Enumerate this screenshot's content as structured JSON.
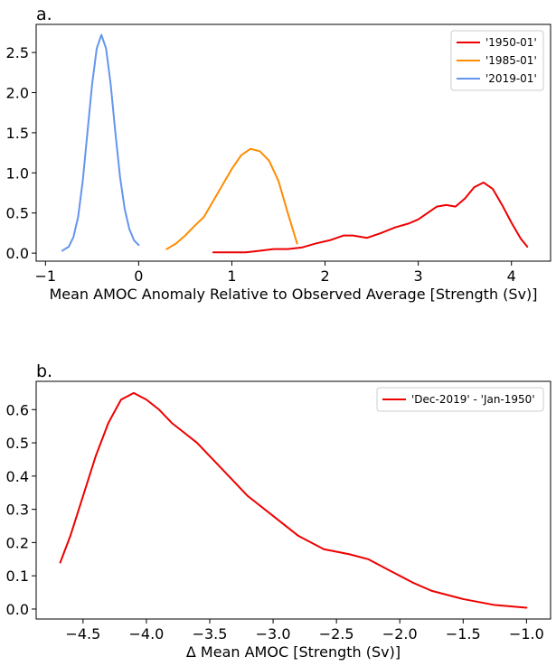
{
  "chart_data": [
    {
      "type": "line",
      "panel_label": "a.",
      "xlabel": "Mean AMOC Anomaly Relative to Observed Average [Strength (Sv)]",
      "ylabel": "",
      "xlim": [
        -1.1,
        4.42
      ],
      "ylim": [
        -0.1,
        2.85
      ],
      "xticks": [
        -1,
        0,
        1,
        2,
        3,
        4
      ],
      "xtick_labels": [
        "−1",
        "0",
        "1",
        "2",
        "3",
        "4"
      ],
      "yticks": [
        0.0,
        0.5,
        1.0,
        1.5,
        2.0,
        2.5
      ],
      "ytick_labels": [
        "0.0",
        "0.5",
        "1.0",
        "1.5",
        "2.0",
        "2.5"
      ],
      "grid": false,
      "legend_placement": "top-right",
      "series": [
        {
          "name": "'1950-01'",
          "color": "#ee0000",
          "x": [
            0.8,
            1.0,
            1.15,
            1.3,
            1.45,
            1.6,
            1.75,
            1.9,
            2.05,
            2.2,
            2.3,
            2.45,
            2.6,
            2.75,
            2.9,
            3.0,
            3.1,
            3.2,
            3.3,
            3.4,
            3.5,
            3.6,
            3.7,
            3.8,
            3.9,
            4.0,
            4.1,
            4.17
          ],
          "y": [
            0.01,
            0.01,
            0.01,
            0.03,
            0.05,
            0.05,
            0.07,
            0.12,
            0.16,
            0.22,
            0.22,
            0.19,
            0.25,
            0.32,
            0.37,
            0.42,
            0.5,
            0.58,
            0.6,
            0.58,
            0.68,
            0.82,
            0.88,
            0.8,
            0.6,
            0.38,
            0.18,
            0.08
          ]
        },
        {
          "name": "'1985-01'",
          "color": "#ff8c00",
          "x": [
            0.3,
            0.4,
            0.5,
            0.6,
            0.7,
            0.8,
            0.9,
            1.0,
            1.1,
            1.2,
            1.3,
            1.4,
            1.5,
            1.6,
            1.7
          ],
          "y": [
            0.05,
            0.12,
            0.22,
            0.34,
            0.45,
            0.65,
            0.85,
            1.05,
            1.22,
            1.3,
            1.27,
            1.15,
            0.9,
            0.5,
            0.12
          ]
        },
        {
          "name": "'2019-01'",
          "color": "#6495ed",
          "x": [
            -0.82,
            -0.75,
            -0.7,
            -0.65,
            -0.6,
            -0.55,
            -0.5,
            -0.45,
            -0.4,
            -0.35,
            -0.3,
            -0.25,
            -0.2,
            -0.15,
            -0.1,
            -0.05,
            0.0
          ],
          "y": [
            0.03,
            0.08,
            0.2,
            0.45,
            0.9,
            1.5,
            2.1,
            2.55,
            2.72,
            2.55,
            2.1,
            1.5,
            0.95,
            0.55,
            0.3,
            0.16,
            0.1
          ]
        }
      ]
    },
    {
      "type": "line",
      "panel_label": "b.",
      "xlabel": "Δ Mean AMOC [Strength (Sv)]",
      "ylabel": "",
      "xlim": [
        -4.87,
        -0.81
      ],
      "ylim": [
        -0.03,
        0.685
      ],
      "xticks": [
        -4.5,
        -4.0,
        -3.5,
        -3.0,
        -2.5,
        -2.0,
        -1.5,
        -1.0
      ],
      "xtick_labels": [
        "−4.5",
        "−4.0",
        "−3.5",
        "−3.0",
        "−2.5",
        "−2.0",
        "−1.5",
        "−1.0"
      ],
      "yticks": [
        0.0,
        0.1,
        0.2,
        0.3,
        0.4,
        0.5,
        0.6
      ],
      "ytick_labels": [
        "0.0",
        "0.1",
        "0.2",
        "0.3",
        "0.4",
        "0.5",
        "0.6"
      ],
      "grid": false,
      "legend_placement": "top-right",
      "series": [
        {
          "name": "'Dec-2019' - 'Jan-1950'",
          "color": "#ee0000",
          "x": [
            -4.68,
            -4.6,
            -4.5,
            -4.4,
            -4.3,
            -4.2,
            -4.1,
            -4.0,
            -3.9,
            -3.8,
            -3.7,
            -3.6,
            -3.5,
            -3.4,
            -3.3,
            -3.2,
            -3.0,
            -2.8,
            -2.6,
            -2.4,
            -2.25,
            -2.1,
            -2.0,
            -1.9,
            -1.75,
            -1.5,
            -1.25,
            -1.0
          ],
          "y": [
            0.14,
            0.22,
            0.34,
            0.46,
            0.56,
            0.63,
            0.65,
            0.63,
            0.6,
            0.56,
            0.53,
            0.5,
            0.46,
            0.42,
            0.38,
            0.34,
            0.28,
            0.22,
            0.18,
            0.165,
            0.15,
            0.12,
            0.1,
            0.08,
            0.055,
            0.03,
            0.012,
            0.004
          ]
        }
      ]
    }
  ]
}
